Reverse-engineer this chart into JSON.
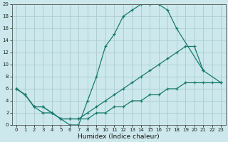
{
  "xlabel": "Humidex (Indice chaleur)",
  "background_color": "#cce8ec",
  "grid_color": "#aacccc",
  "line_color": "#1a7a6e",
  "line1_x": [
    0,
    1,
    2,
    3,
    4,
    5,
    6,
    7,
    8,
    9,
    10,
    11,
    12,
    13,
    14,
    15,
    16,
    17,
    18,
    21
  ],
  "line1_y": [
    6,
    5,
    3,
    3,
    2,
    1,
    0,
    0,
    4,
    8,
    13,
    15,
    18,
    19,
    20,
    20,
    20,
    19,
    16,
    9
  ],
  "line2_x": [
    0,
    1,
    2,
    3,
    4,
    5,
    6,
    7,
    8,
    9,
    10,
    11,
    12,
    13,
    14,
    15,
    16,
    17,
    18,
    19,
    20,
    21,
    23
  ],
  "line2_y": [
    6,
    5,
    3,
    3,
    2,
    1,
    1,
    1,
    2,
    3,
    4,
    5,
    6,
    7,
    8,
    9,
    10,
    11,
    12,
    13,
    13,
    9,
    7
  ],
  "line3_x": [
    0,
    1,
    2,
    3,
    4,
    5,
    6,
    7,
    8,
    9,
    10,
    11,
    12,
    13,
    14,
    15,
    16,
    17,
    18,
    19,
    20,
    21,
    22,
    23
  ],
  "line3_y": [
    6,
    5,
    3,
    2,
    2,
    1,
    1,
    1,
    1,
    2,
    2,
    3,
    3,
    4,
    4,
    5,
    5,
    6,
    6,
    7,
    7,
    7,
    7,
    7
  ],
  "ylim": [
    0,
    20
  ],
  "xlim": [
    -0.5,
    23.5
  ],
  "yticks": [
    0,
    2,
    4,
    6,
    8,
    10,
    12,
    14,
    16,
    18,
    20
  ],
  "xticks": [
    0,
    1,
    2,
    3,
    4,
    5,
    6,
    7,
    8,
    9,
    10,
    11,
    12,
    13,
    14,
    15,
    16,
    17,
    18,
    19,
    20,
    21,
    22,
    23
  ],
  "tick_fontsize": 5.0,
  "xlabel_fontsize": 6.5
}
